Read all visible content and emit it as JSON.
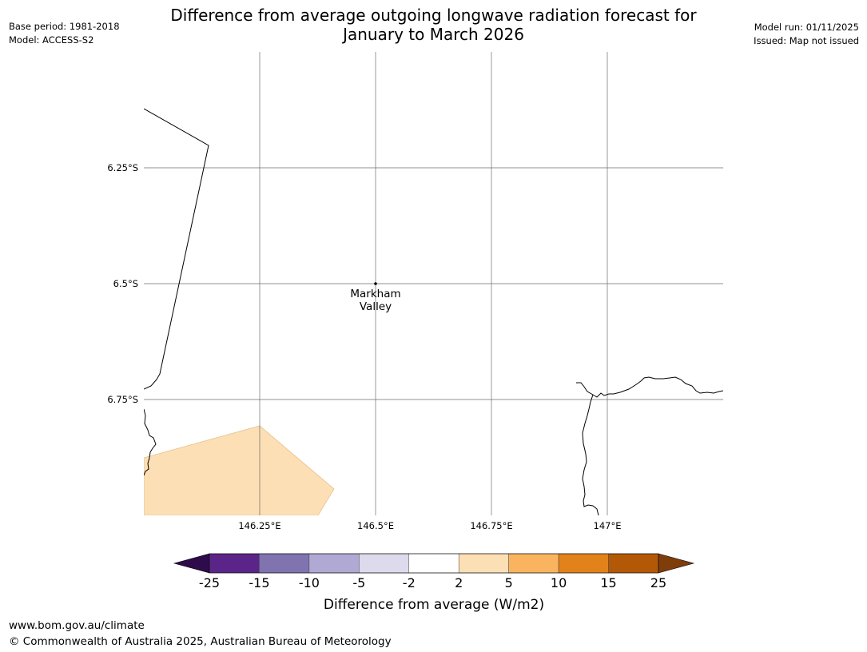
{
  "header": {
    "title_line1": "Difference from average outgoing longwave radiation forecast for",
    "title_line2": "January to March 2026",
    "base_period": "Base period: 1981-2018",
    "model": "Model: ACCESS-S2",
    "model_run": "Model run: 01/11/2025",
    "issued": "Issued: Map not issued"
  },
  "map": {
    "lon_range": [
      146.0,
      147.25
    ],
    "lat_range": [
      -6.0,
      -7.0
    ],
    "lon_ticks": [
      {
        "value": 146.25,
        "label": "146.25°E"
      },
      {
        "value": 146.5,
        "label": "146.5°E"
      },
      {
        "value": 146.75,
        "label": "146.75°E"
      },
      {
        "value": 147.0,
        "label": "147°E"
      }
    ],
    "lat_ticks": [
      {
        "value": -6.25,
        "label": "6.25°S"
      },
      {
        "value": -6.5,
        "label": "6.5°S"
      },
      {
        "value": -6.75,
        "label": "6.75°S"
      }
    ],
    "place": {
      "name_line1": "Markham",
      "name_line2": "Valley",
      "lon": 146.5,
      "lat": -6.5
    },
    "anomaly_region": {
      "category": "2 to 5",
      "color": "#fddfb5"
    }
  },
  "colorbar": {
    "title": "Difference from average (W/m2)",
    "labels": [
      "-25",
      "-15",
      "-10",
      "-5",
      "-2",
      "2",
      "5",
      "10",
      "15",
      "25"
    ],
    "colors": [
      "#5a2488",
      "#8073b0",
      "#b0a9d3",
      "#dcdaec",
      "#ffffff",
      "#fddfb5",
      "#fab45f",
      "#e2821a",
      "#b35807"
    ],
    "under_color": "#2e0b4b",
    "over_color": "#7f3d0a"
  },
  "footer": {
    "url": "www.bom.gov.au/climate",
    "copyright": "© Commonwealth of Australia 2025, Australian Bureau of Meteorology"
  }
}
